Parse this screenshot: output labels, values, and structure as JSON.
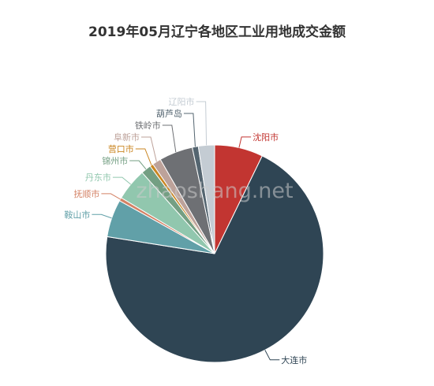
{
  "chart_data": {
    "type": "pie",
    "title": "2019年05月辽宁各地区工业用地成交金额",
    "slices": [
      {
        "label": "沈阳市",
        "value": 7.2,
        "color": "#c23531"
      },
      {
        "label": "大连市",
        "value": 70.3,
        "color": "#2f4554"
      },
      {
        "label": "鞍山市",
        "value": 5.6,
        "color": "#61a0a8"
      },
      {
        "label": "抚顺市",
        "value": 0.5,
        "color": "#d48265"
      },
      {
        "label": "丹东市",
        "value": 4.8,
        "color": "#91c7ae"
      },
      {
        "label": "锦州市",
        "value": 1.5,
        "color": "#749f83"
      },
      {
        "label": "营口市",
        "value": 0.5,
        "color": "#ca8622"
      },
      {
        "label": "阜新市",
        "value": 1.3,
        "color": "#bda29a"
      },
      {
        "label": "铁岭市",
        "value": 5.0,
        "color": "#6e7074"
      },
      {
        "label": "葫芦岛",
        "value": 0.9,
        "color": "#546570"
      },
      {
        "label": "辽阳市",
        "value": 2.4,
        "color": "#c4ccd3"
      }
    ]
  },
  "watermark": "zhaoshang.net"
}
